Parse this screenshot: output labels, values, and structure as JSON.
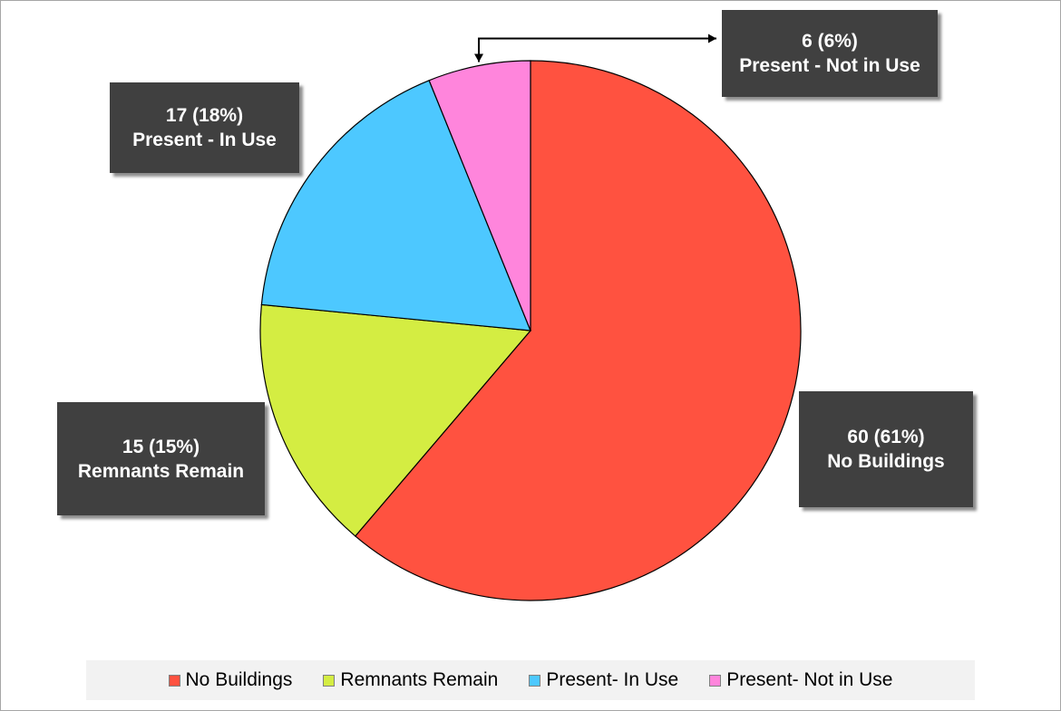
{
  "chart_data": {
    "type": "pie",
    "start_angle_deg": 0,
    "direction": "clockwise",
    "slices": [
      {
        "label": "No Buildings",
        "value": 60,
        "percent": 61,
        "color": "#ff5240",
        "data_label": {
          "value_text": "60 (61%)",
          "name_text": "No Buildings"
        }
      },
      {
        "label": "Remnants Remain",
        "value": 15,
        "percent": 15,
        "color": "#d4ed42",
        "data_label": {
          "value_text": "15 (15%)",
          "name_text": "Remnants Remain"
        }
      },
      {
        "label": "Present- In Use",
        "value": 17,
        "percent": 18,
        "color": "#4dc8ff",
        "data_label": {
          "value_text": "17 (18%)",
          "name_text": "Present - In Use"
        }
      },
      {
        "label": "Present- Not in Use",
        "value": 6,
        "percent": 6,
        "color": "#ff85dc",
        "data_label": {
          "value_text": "6 (6%)",
          "name_text": "Present - Not in Use"
        }
      }
    ],
    "legend_position": "bottom",
    "label_box_color": "#404040"
  }
}
